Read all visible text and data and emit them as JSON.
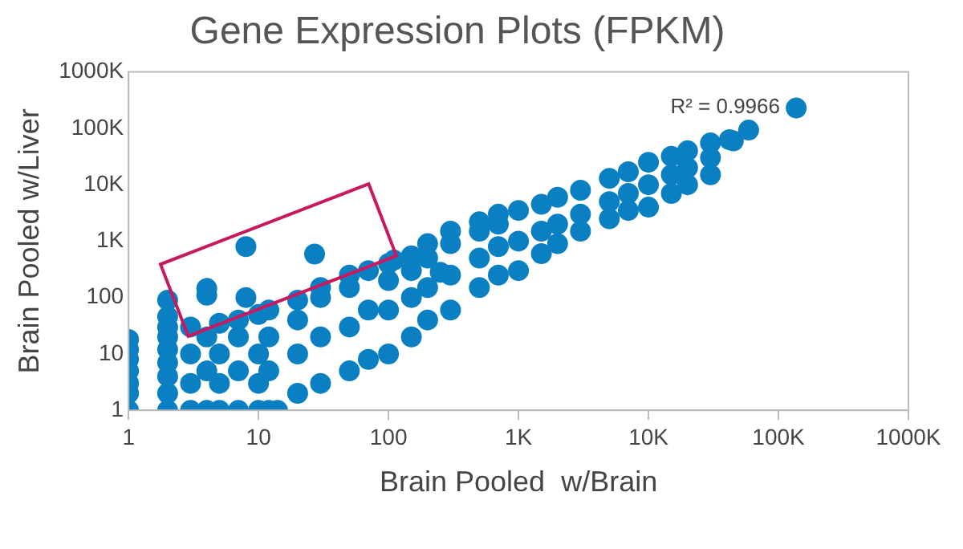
{
  "chart_data": {
    "type": "scatter",
    "title": "Gene Expression Plots (FPKM)",
    "xlabel": "Brain Pooled  w/Brain",
    "ylabel": "Brain Pooled w/Liver",
    "annotations": [
      "R² = 0.9966"
    ],
    "x": [
      1,
      1,
      1,
      1,
      1,
      1,
      1,
      2,
      2,
      2,
      2,
      2,
      2,
      2,
      2,
      2,
      3,
      3,
      3,
      3,
      4,
      4,
      4,
      4,
      4,
      5,
      5,
      5,
      5,
      7,
      7,
      7,
      7,
      8,
      8,
      10,
      10,
      10,
      10,
      12,
      12,
      12,
      12,
      14,
      20,
      20,
      20,
      20,
      27,
      30,
      30,
      30,
      30,
      50,
      50,
      50,
      50,
      70,
      70,
      70,
      110,
      100,
      100,
      100,
      100,
      150,
      150,
      150,
      150,
      250,
      200,
      200,
      200,
      200,
      300,
      300,
      300,
      300,
      500,
      500,
      500,
      500,
      700,
      700,
      700,
      700,
      1000,
      1000,
      1000,
      1500,
      1500,
      1500,
      2000,
      2000,
      2000,
      3000,
      3000,
      3000,
      5000,
      5000,
      5000,
      7000,
      7000,
      7000,
      10000,
      10000,
      10000,
      15000,
      15000,
      15000,
      20000,
      20000,
      20000,
      30000,
      30000,
      30000,
      42000,
      45000,
      59000,
      137000
    ],
    "values": [
      1,
      2,
      3,
      5,
      8,
      12,
      18,
      1,
      2,
      4,
      7,
      12,
      20,
      30,
      46,
      90,
      1,
      3,
      10,
      30,
      1,
      5,
      20,
      110,
      145,
      1,
      3,
      10,
      35,
      1,
      5,
      20,
      40,
      800,
      100,
      1,
      3,
      10,
      50,
      1,
      5,
      20,
      60,
      1,
      2,
      10,
      40,
      90,
      590,
      3,
      20,
      100,
      150,
      5,
      30,
      150,
      250,
      8,
      60,
      300,
      460,
      10,
      60,
      200,
      400,
      20,
      100,
      300,
      550,
      280,
      40,
      150,
      500,
      900,
      60,
      250,
      900,
      1500,
      150,
      500,
      1500,
      2200,
      250,
      800,
      2000,
      3000,
      300,
      1000,
      3500,
      600,
      1500,
      4500,
      900,
      2000,
      6000,
      1500,
      3000,
      8000,
      2500,
      5000,
      13000,
      3500,
      7000,
      17000,
      4000,
      10000,
      25000,
      7000,
      15000,
      32000,
      10000,
      20000,
      40000,
      15000,
      30000,
      55000,
      63000,
      60000,
      93000,
      229000
    ],
    "color": "#0a80c3",
    "marker": "circle",
    "log": "xy",
    "grid": false,
    "legend": false,
    "xlim": [
      1,
      1000000
    ],
    "ylim": [
      1,
      1000000
    ],
    "xticks": [
      1,
      10,
      100,
      {
        "value": 1000,
        "label": "1K"
      },
      {
        "value": 10000,
        "label": "10K"
      },
      {
        "value": 100000,
        "label": "100K"
      },
      {
        "value": 1000000,
        "label": "1000K"
      }
    ],
    "yticks": [
      1,
      10,
      100,
      {
        "value": 1000,
        "label": "1K"
      },
      {
        "value": 10000,
        "label": "10K"
      },
      {
        "value": 100000,
        "label": "100K"
      },
      {
        "value": 1000000,
        "label": "1000K"
      }
    ]
  }
}
